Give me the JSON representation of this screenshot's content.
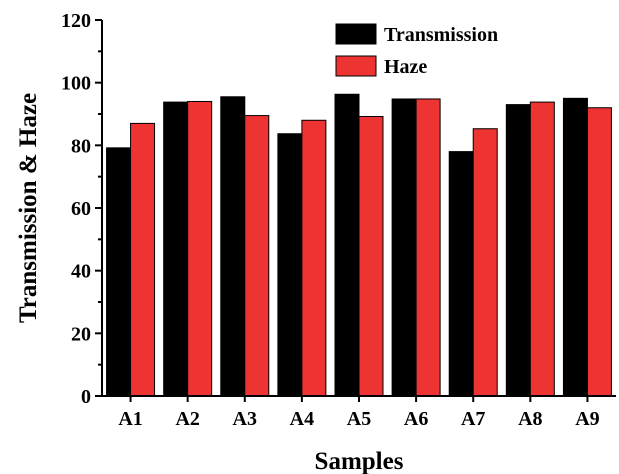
{
  "chart_data": {
    "type": "bar",
    "categories": [
      "A1",
      "A2",
      "A3",
      "A4",
      "A5",
      "A6",
      "A7",
      "A8",
      "A9"
    ],
    "series": [
      {
        "name": "Transmission",
        "color": "#000000",
        "values": [
          79.2,
          93.8,
          95.5,
          83.7,
          96.3,
          94.8,
          78.0,
          93.0,
          95.0
        ]
      },
      {
        "name": "Haze",
        "color": "#ee3333",
        "values": [
          87.0,
          94.0,
          89.5,
          88.0,
          89.2,
          94.8,
          85.3,
          93.8,
          92.0
        ]
      }
    ],
    "title": "",
    "xlabel": "Samples",
    "ylabel": "Transmission & Haze",
    "ylim": [
      0,
      120
    ],
    "yticks": [
      0,
      20,
      40,
      60,
      80,
      100,
      120
    ],
    "y_minor_step": 10,
    "grid": false,
    "legend_position": "top-right"
  }
}
